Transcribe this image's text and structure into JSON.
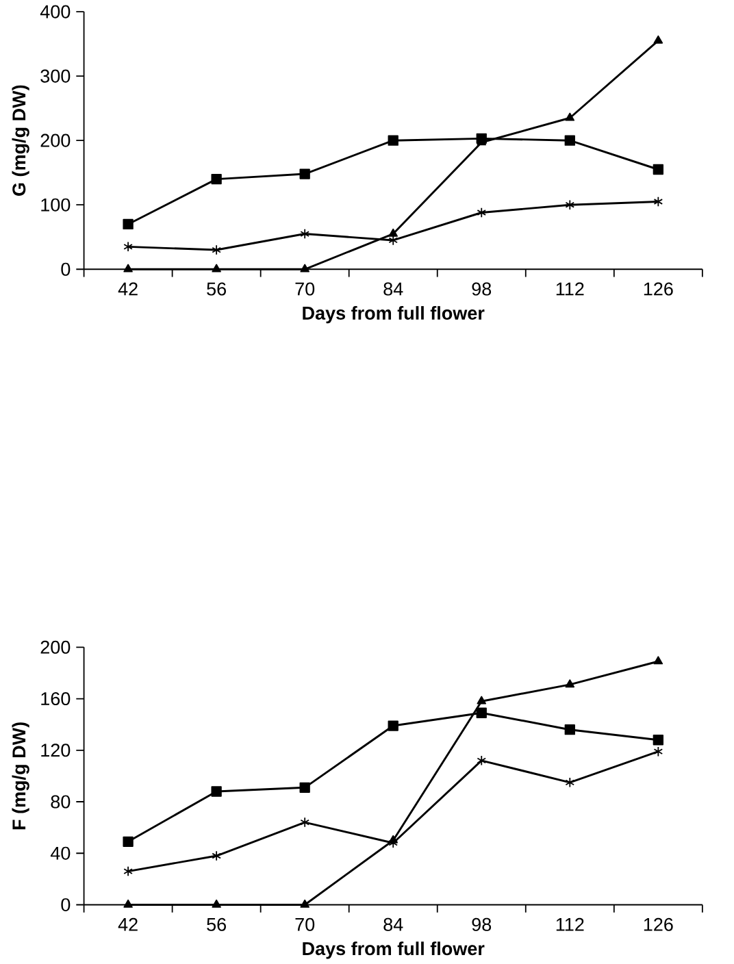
{
  "chart_data": [
    {
      "type": "line",
      "xlabel": "Days from full flower",
      "ylabel": "G (mg/g DW)",
      "categories": [
        "42",
        "56",
        "70",
        "84",
        "98",
        "112",
        "126"
      ],
      "ylim": [
        0,
        400
      ],
      "yticks": [
        0,
        100,
        200,
        300,
        400
      ],
      "series": [
        {
          "color": "#000000",
          "marker": "square",
          "values": [
            70,
            140,
            148,
            200,
            203,
            200,
            155
          ]
        },
        {
          "color": "#000000",
          "marker": "triangle",
          "values": [
            0,
            0,
            0,
            55,
            197,
            235,
            355
          ]
        },
        {
          "color": "#000000",
          "marker": "cross",
          "values": [
            35,
            30,
            55,
            45,
            88,
            100,
            105
          ]
        }
      ]
    },
    {
      "type": "line",
      "xlabel": "Days from full flower",
      "ylabel": "F (mg/g DW)",
      "categories": [
        "42",
        "56",
        "70",
        "84",
        "98",
        "112",
        "126"
      ],
      "ylim": [
        0,
        200
      ],
      "yticks": [
        0,
        40,
        80,
        120,
        160,
        200
      ],
      "series": [
        {
          "color": "#000000",
          "marker": "square",
          "values": [
            49,
            88,
            91,
            139,
            149,
            136,
            128
          ]
        },
        {
          "color": "#000000",
          "marker": "triangle",
          "values": [
            0,
            0,
            0,
            50,
            158,
            171,
            189
          ]
        },
        {
          "color": "#000000",
          "marker": "cross",
          "values": [
            26,
            38,
            64,
            48,
            112,
            95,
            119
          ]
        }
      ]
    }
  ]
}
